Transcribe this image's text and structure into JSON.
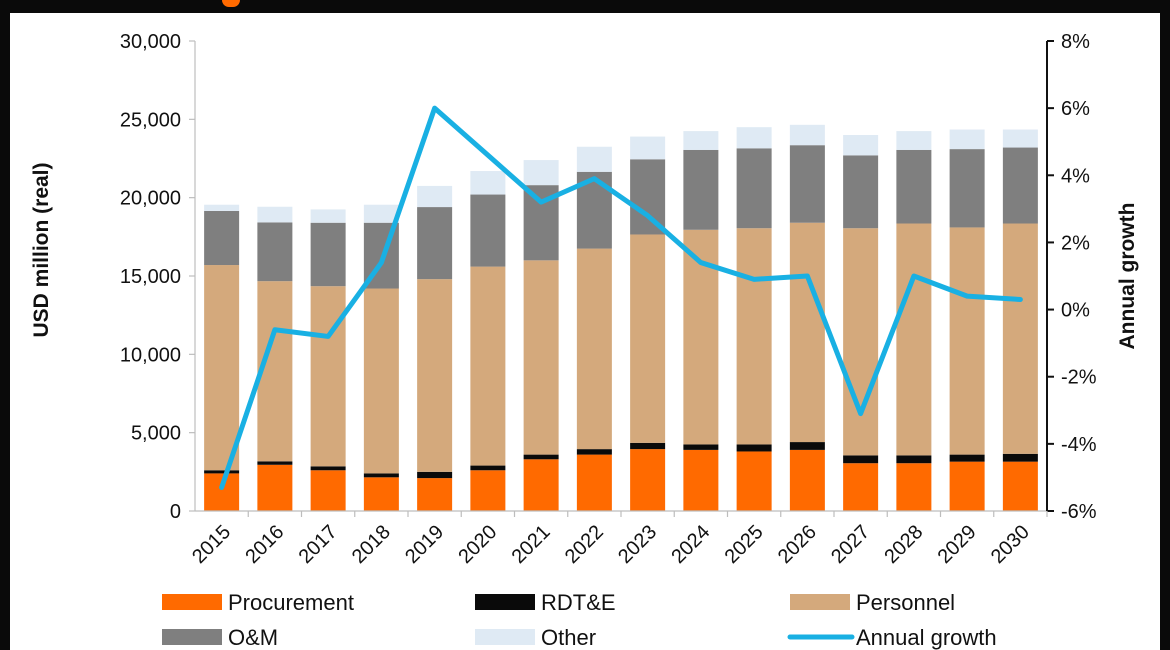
{
  "chart_data": {
    "type": "bar",
    "stacked": true,
    "categories": [
      "2015",
      "2016",
      "2017",
      "2018",
      "2019",
      "2020",
      "2021",
      "2022",
      "2023",
      "2024",
      "2025",
      "2026",
      "2027",
      "2028",
      "2029",
      "2030"
    ],
    "series": [
      {
        "name": "Procurement",
        "color": "#ff6a00",
        "values": [
          2400,
          2950,
          2600,
          2150,
          2100,
          2600,
          3300,
          3600,
          3950,
          3900,
          3800,
          3900,
          3050,
          3050,
          3150,
          3150
        ]
      },
      {
        "name": "RDT&E",
        "color": "#0a0a0a",
        "values": [
          200,
          220,
          250,
          250,
          400,
          300,
          300,
          350,
          400,
          350,
          450,
          500,
          500,
          500,
          450,
          500
        ]
      },
      {
        "name": "Personnel",
        "color": "#d4a97c",
        "values": [
          13100,
          11500,
          11500,
          11800,
          12300,
          12700,
          12400,
          12800,
          13300,
          13700,
          13800,
          14000,
          14500,
          14800,
          14500,
          14700
        ]
      },
      {
        "name": "O&M",
        "color": "#7f7f7f",
        "values": [
          3450,
          3750,
          4050,
          4200,
          4600,
          4600,
          4800,
          4900,
          4800,
          5100,
          5100,
          4950,
          4650,
          4700,
          5000,
          4850
        ]
      },
      {
        "name": "Other",
        "color": "#dfeaf4",
        "values": [
          400,
          1000,
          850,
          1150,
          1350,
          1500,
          1600,
          1600,
          1450,
          1200,
          1350,
          1300,
          1300,
          1200,
          1250,
          1150
        ]
      }
    ],
    "line": {
      "name": "Annual growth",
      "color": "#19b0e3",
      "axis": "right",
      "values": [
        -5.3,
        -0.6,
        -0.8,
        1.4,
        6.0,
        4.6,
        3.2,
        3.9,
        2.8,
        1.4,
        0.9,
        1.0,
        -3.1,
        1.0,
        0.4,
        0.3
      ]
    },
    "ylabel": "USD million (real)",
    "ylim": [
      0,
      30000
    ],
    "yticks": [
      0,
      5000,
      10000,
      15000,
      20000,
      25000,
      30000
    ],
    "yticklabels": [
      "0",
      "5,000",
      "10,000",
      "15,000",
      "20,000",
      "25,000",
      "30,000"
    ],
    "y2label": "Annual growth",
    "y2lim": [
      -6,
      8
    ],
    "y2ticks": [
      -6,
      -4,
      -2,
      0,
      2,
      4,
      6,
      8
    ],
    "y2ticklabels": [
      "-6%",
      "-4%",
      "-2%",
      "0%",
      "2%",
      "4%",
      "6%",
      "8%"
    ],
    "grid": false,
    "legend": {
      "position": "bottom",
      "items": [
        {
          "label": "Procurement",
          "color": "#ff6a00",
          "kind": "bar"
        },
        {
          "label": "RDT&E",
          "color": "#0a0a0a",
          "kind": "bar"
        },
        {
          "label": "Personnel",
          "color": "#d4a97c",
          "kind": "bar"
        },
        {
          "label": "O&M",
          "color": "#7f7f7f",
          "kind": "bar"
        },
        {
          "label": "Other",
          "color": "#dfeaf4",
          "kind": "bar"
        },
        {
          "label": "Annual growth",
          "color": "#19b0e3",
          "kind": "line"
        }
      ]
    }
  }
}
